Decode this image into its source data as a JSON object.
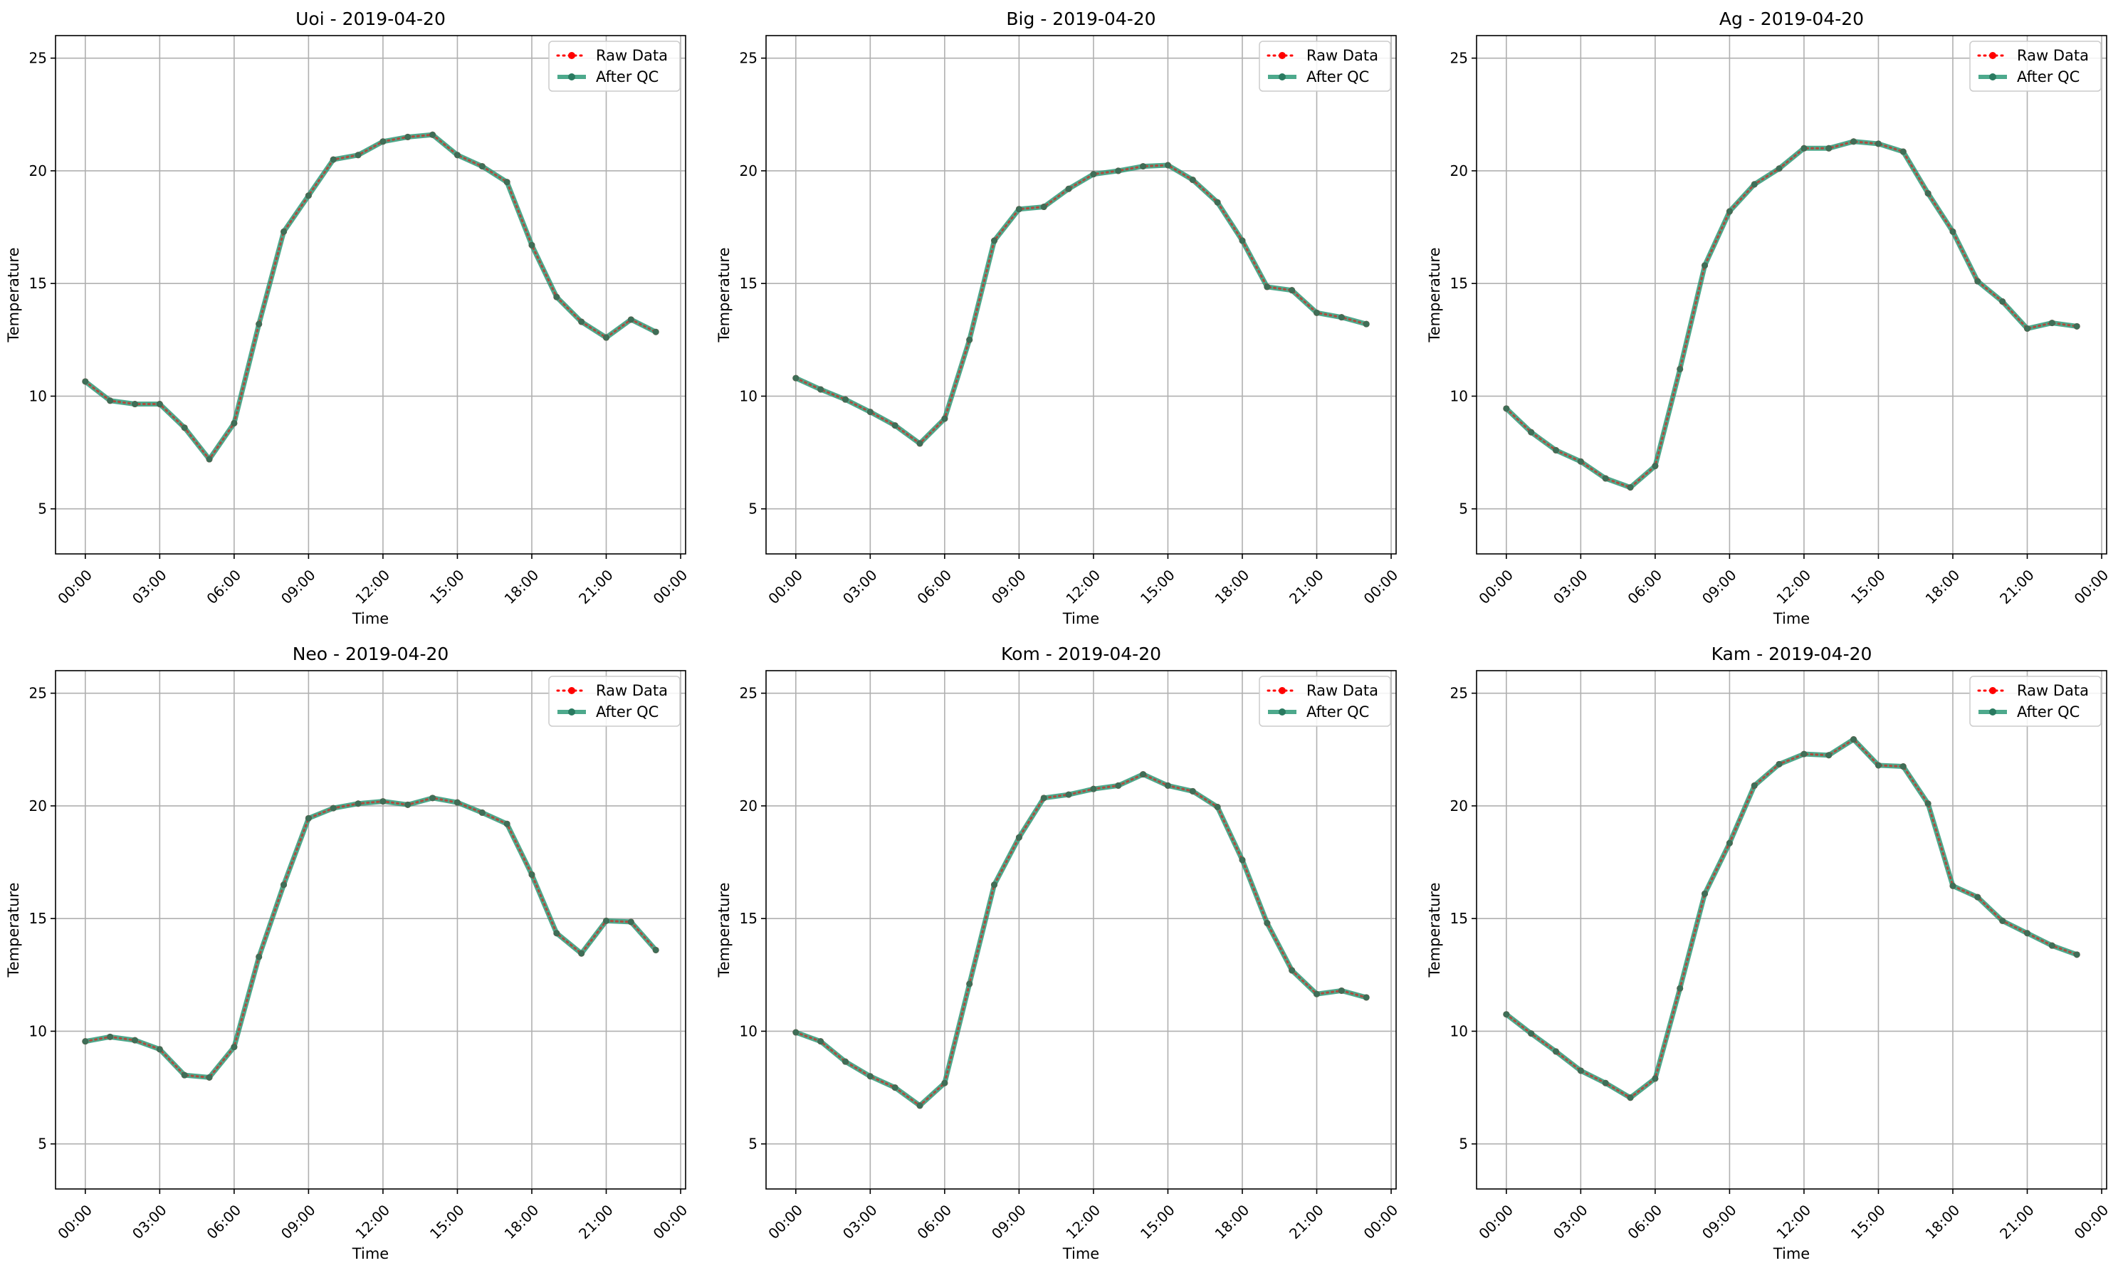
{
  "legend": {
    "raw_label": "Raw Data",
    "qc_label": "After QC"
  },
  "colors": {
    "raw": "#ff0000",
    "qc": "#2e9a78",
    "grid": "#b0b0b0",
    "axes": "#000000"
  },
  "chart_data": [
    {
      "type": "line",
      "title": "Uoi - 2019-04-20",
      "xlabel": "Time",
      "ylabel": "Temperature",
      "x_ticks": [
        "00:00",
        "03:00",
        "06:00",
        "09:00",
        "12:00",
        "15:00",
        "18:00",
        "21:00",
        "00:00"
      ],
      "xlim_hours": [
        -1.2,
        24.2
      ],
      "ylim": [
        3,
        26
      ],
      "y_ticks": [
        5,
        10,
        15,
        20,
        25
      ],
      "grid": true,
      "legend_position": "top-right",
      "series": [
        {
          "name": "Raw Data",
          "values": [
            10.65,
            9.8,
            9.65,
            9.65,
            8.6,
            7.2,
            8.8,
            13.2,
            17.3,
            18.9,
            20.5,
            20.7,
            21.3,
            21.5,
            21.6,
            20.7,
            20.2,
            19.5,
            16.7,
            14.4,
            13.3,
            12.6,
            13.4,
            12.85
          ]
        },
        {
          "name": "After QC",
          "values": [
            10.65,
            9.8,
            9.65,
            9.65,
            8.6,
            7.2,
            8.8,
            13.2,
            17.3,
            18.9,
            20.5,
            20.7,
            21.3,
            21.5,
            21.6,
            20.7,
            20.2,
            19.5,
            16.7,
            14.4,
            13.3,
            12.6,
            13.4,
            12.85
          ]
        }
      ]
    },
    {
      "type": "line",
      "title": "Big - 2019-04-20",
      "xlabel": "Time",
      "ylabel": "Temperature",
      "x_ticks": [
        "00:00",
        "03:00",
        "06:00",
        "09:00",
        "12:00",
        "15:00",
        "18:00",
        "21:00",
        "00:00"
      ],
      "xlim_hours": [
        -1.2,
        24.2
      ],
      "ylim": [
        3,
        26
      ],
      "y_ticks": [
        5,
        10,
        15,
        20,
        25
      ],
      "grid": true,
      "legend_position": "top-right",
      "series": [
        {
          "name": "Raw Data",
          "values": [
            10.8,
            10.3,
            9.85,
            9.3,
            8.7,
            7.9,
            9.0,
            12.5,
            16.9,
            18.3,
            18.4,
            19.2,
            19.85,
            20.0,
            20.2,
            20.25,
            19.6,
            18.6,
            16.9,
            14.85,
            14.7,
            13.7,
            13.5,
            13.2
          ]
        },
        {
          "name": "After QC",
          "values": [
            10.8,
            10.3,
            9.85,
            9.3,
            8.7,
            7.9,
            9.0,
            12.5,
            16.9,
            18.3,
            18.4,
            19.2,
            19.85,
            20.0,
            20.2,
            20.25,
            19.6,
            18.6,
            16.9,
            14.85,
            14.7,
            13.7,
            13.5,
            13.2
          ]
        }
      ]
    },
    {
      "type": "line",
      "title": "Ag - 2019-04-20",
      "xlabel": "Time",
      "ylabel": "Temperature",
      "x_ticks": [
        "00:00",
        "03:00",
        "06:00",
        "09:00",
        "12:00",
        "15:00",
        "18:00",
        "21:00",
        "00:00"
      ],
      "xlim_hours": [
        -1.2,
        24.2
      ],
      "ylim": [
        3,
        26
      ],
      "y_ticks": [
        5,
        10,
        15,
        20,
        25
      ],
      "grid": true,
      "legend_position": "top-right",
      "series": [
        {
          "name": "Raw Data",
          "values": [
            9.45,
            8.4,
            7.6,
            7.1,
            6.35,
            5.95,
            6.9,
            11.2,
            15.8,
            18.2,
            19.4,
            20.1,
            21.0,
            21.0,
            21.3,
            21.2,
            20.85,
            19.0,
            17.3,
            15.1,
            14.2,
            13.0,
            13.25,
            13.1
          ]
        },
        {
          "name": "After QC",
          "values": [
            9.45,
            8.4,
            7.6,
            7.1,
            6.35,
            5.95,
            6.9,
            11.2,
            15.8,
            18.2,
            19.4,
            20.1,
            21.0,
            21.0,
            21.3,
            21.2,
            20.85,
            19.0,
            17.3,
            15.1,
            14.2,
            13.0,
            13.25,
            13.1
          ]
        }
      ]
    },
    {
      "type": "line",
      "title": "Neo - 2019-04-20",
      "xlabel": "Time",
      "ylabel": "Temperature",
      "x_ticks": [
        "00:00",
        "03:00",
        "06:00",
        "09:00",
        "12:00",
        "15:00",
        "18:00",
        "21:00",
        "00:00"
      ],
      "xlim_hours": [
        -1.2,
        24.2
      ],
      "ylim": [
        3,
        26
      ],
      "y_ticks": [
        5,
        10,
        15,
        20,
        25
      ],
      "grid": true,
      "legend_position": "top-right",
      "series": [
        {
          "name": "Raw Data",
          "values": [
            9.55,
            9.75,
            9.6,
            9.2,
            8.05,
            7.95,
            9.3,
            13.3,
            16.5,
            19.45,
            19.9,
            20.1,
            20.2,
            20.05,
            20.35,
            20.15,
            19.7,
            19.2,
            16.95,
            14.35,
            13.45,
            14.9,
            14.85,
            13.6
          ]
        },
        {
          "name": "After QC",
          "values": [
            9.55,
            9.75,
            9.6,
            9.2,
            8.05,
            7.95,
            9.3,
            13.3,
            16.5,
            19.45,
            19.9,
            20.1,
            20.2,
            20.05,
            20.35,
            20.15,
            19.7,
            19.2,
            16.95,
            14.35,
            13.45,
            14.9,
            14.85,
            13.6
          ]
        }
      ]
    },
    {
      "type": "line",
      "title": "Kom - 2019-04-20",
      "xlabel": "Time",
      "ylabel": "Temperature",
      "x_ticks": [
        "00:00",
        "03:00",
        "06:00",
        "09:00",
        "12:00",
        "15:00",
        "18:00",
        "21:00",
        "00:00"
      ],
      "xlim_hours": [
        -1.2,
        24.2
      ],
      "ylim": [
        3,
        26
      ],
      "y_ticks": [
        5,
        10,
        15,
        20,
        25
      ],
      "grid": true,
      "legend_position": "top-right",
      "series": [
        {
          "name": "Raw Data",
          "values": [
            9.95,
            9.55,
            8.65,
            8.0,
            7.5,
            6.7,
            7.7,
            12.1,
            16.5,
            18.6,
            20.35,
            20.5,
            20.75,
            20.9,
            21.4,
            20.9,
            20.65,
            19.95,
            17.6,
            14.8,
            12.7,
            11.65,
            11.8,
            11.5
          ]
        },
        {
          "name": "After QC",
          "values": [
            9.95,
            9.55,
            8.65,
            8.0,
            7.5,
            6.7,
            7.7,
            12.1,
            16.5,
            18.6,
            20.35,
            20.5,
            20.75,
            20.9,
            21.4,
            20.9,
            20.65,
            19.95,
            17.6,
            14.8,
            12.7,
            11.65,
            11.8,
            11.5
          ]
        }
      ]
    },
    {
      "type": "line",
      "title": "Kam - 2019-04-20",
      "xlabel": "Time",
      "ylabel": "Temperature",
      "x_ticks": [
        "00:00",
        "03:00",
        "06:00",
        "09:00",
        "12:00",
        "15:00",
        "18:00",
        "21:00",
        "00:00"
      ],
      "xlim_hours": [
        -1.2,
        24.2
      ],
      "ylim": [
        3,
        26
      ],
      "y_ticks": [
        5,
        10,
        15,
        20,
        25
      ],
      "grid": true,
      "legend_position": "top-right",
      "series": [
        {
          "name": "Raw Data",
          "values": [
            10.75,
            9.9,
            9.1,
            8.25,
            7.7,
            7.05,
            7.9,
            11.9,
            16.1,
            18.35,
            20.9,
            21.85,
            22.3,
            22.25,
            22.95,
            21.8,
            21.75,
            20.1,
            16.45,
            15.95,
            14.9,
            14.35,
            13.8,
            13.4
          ]
        },
        {
          "name": "After QC",
          "values": [
            10.75,
            9.9,
            9.1,
            8.25,
            7.7,
            7.05,
            7.9,
            11.9,
            16.1,
            18.35,
            20.9,
            21.85,
            22.3,
            22.25,
            22.95,
            21.8,
            21.75,
            20.1,
            16.45,
            15.95,
            14.9,
            14.35,
            13.8,
            13.4
          ]
        }
      ]
    }
  ]
}
